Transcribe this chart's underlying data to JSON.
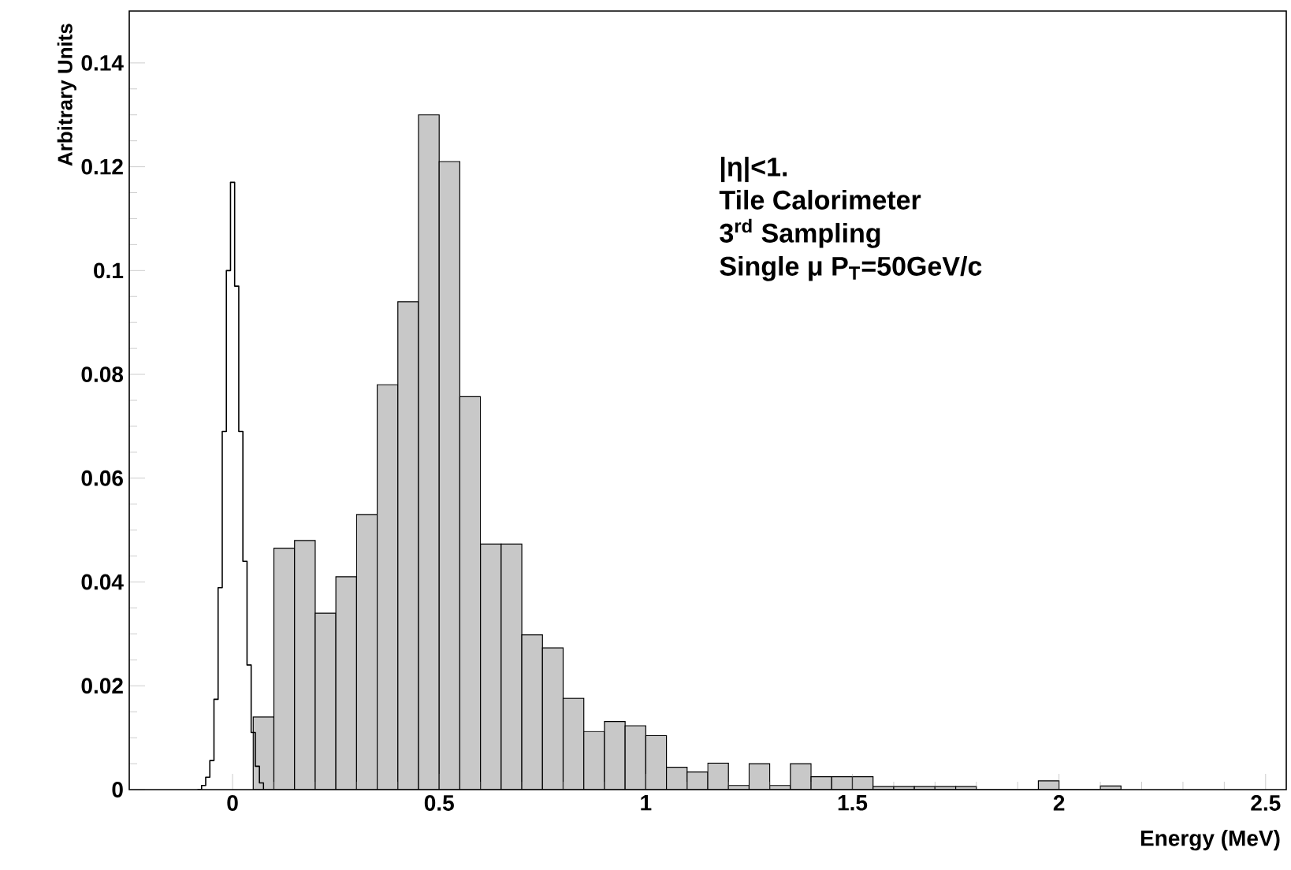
{
  "chart_data": {
    "type": "histogram",
    "xlabel": "Energy (MeV)",
    "ylabel": "Arbitrary Units",
    "annotations": [
      "|η|<1.",
      "Tile Calorimeter",
      "3$^{rd}$ Sampling",
      "Single μ P$_{T}$=50GeV/c"
    ],
    "xlim": [
      -0.25,
      2.55
    ],
    "xticks": [
      0,
      0.5,
      1,
      1.5,
      2,
      2.5
    ],
    "ylim": [
      0,
      0.15
    ],
    "yticks": [
      0,
      0.02,
      0.04,
      0.06,
      0.08,
      0.1,
      0.12,
      0.14
    ],
    "series": [
      {
        "color": "#c8c8c8",
        "bins": [
          0.05,
          0.1,
          0.15,
          0.2,
          0.25,
          0.3,
          0.35,
          0.4,
          0.45,
          0.5,
          0.55,
          0.6,
          0.65,
          0.7,
          0.75,
          0.8,
          0.85,
          0.9,
          0.95,
          1.0,
          1.05,
          1.1,
          1.15,
          1.2,
          1.25,
          1.3,
          1.35,
          1.4,
          1.45,
          1.5,
          1.55,
          1.6,
          1.65,
          1.7,
          1.75,
          1.8,
          1.85,
          1.9,
          1.95,
          2.0,
          2.05,
          2.1,
          2.15
        ],
        "values": [
          0.014,
          0.0465,
          0.048,
          0.034,
          0.041,
          0.053,
          0.078,
          0.094,
          0.13,
          0.121,
          0.0757,
          0.0473,
          0.0473,
          0.0298,
          0.0273,
          0.0176,
          0.0112,
          0.0131,
          0.0123,
          0.0104,
          0.0043,
          0.0034,
          0.0051,
          0.0008,
          0.005,
          0.0008,
          0.005,
          0.0025,
          0.0025,
          0.0025,
          0.0006,
          0.0006,
          0.0006,
          0.0006,
          0.0006,
          0,
          0,
          0,
          0.0017,
          0,
          0,
          0.0007
        ]
      },
      {
        "type": "step",
        "color": "#000000",
        "x": [
          -0.085,
          -0.075,
          -0.065,
          -0.055,
          -0.045,
          -0.035,
          -0.025,
          -0.015,
          -0.005,
          0.005,
          0.015,
          0.025,
          0.035,
          0.045,
          0.055,
          0.065,
          0.075
        ],
        "values": [
          0,
          0.0008,
          0.0024,
          0.0056,
          0.0174,
          0.0389,
          0.069,
          0.1,
          0.117,
          0.097,
          0.069,
          0.044,
          0.024,
          0.011,
          0.0045,
          0.0013,
          0
        ]
      }
    ]
  }
}
